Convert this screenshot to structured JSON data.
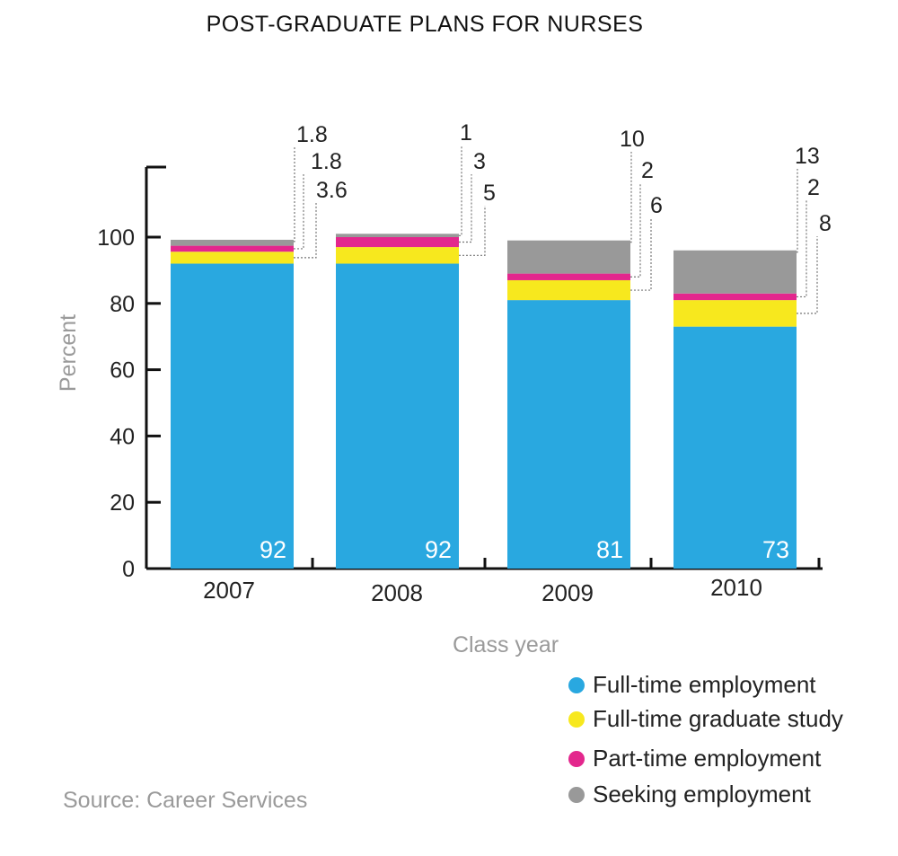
{
  "chart_data": {
    "type": "bar",
    "stacked": true,
    "title": "POST-GRADUATE PLANS FOR NURSES",
    "xlabel": "Class year",
    "ylabel": "Percent",
    "ylim": [
      0,
      120
    ],
    "yticks": [
      0,
      20,
      40,
      60,
      80,
      100
    ],
    "categories": [
      "2007",
      "2008",
      "2009",
      "2010"
    ],
    "series": [
      {
        "name": "Full-time employment",
        "color": "#29a8e0",
        "values": [
          92,
          92,
          81,
          73
        ]
      },
      {
        "name": "Full-time graduate study",
        "color": "#f7e81e",
        "values": [
          3.6,
          5,
          6,
          8
        ]
      },
      {
        "name": "Part-time employment",
        "color": "#e3278d",
        "values": [
          1.8,
          3,
          2,
          2
        ]
      },
      {
        "name": "Seeking employment",
        "color": "#999999",
        "values": [
          1.8,
          1,
          10,
          13
        ]
      }
    ],
    "segment_labels": [
      [
        "3.6",
        "1.8",
        "1.8"
      ],
      [
        "5",
        "3",
        "1"
      ],
      [
        "6",
        "2",
        "10"
      ],
      [
        "8",
        "2",
        "13"
      ]
    ],
    "base_labels": [
      "92",
      "92",
      "81",
      "73"
    ],
    "legend_position": "bottom-right",
    "grid": false
  },
  "source": "Source: Career Services"
}
